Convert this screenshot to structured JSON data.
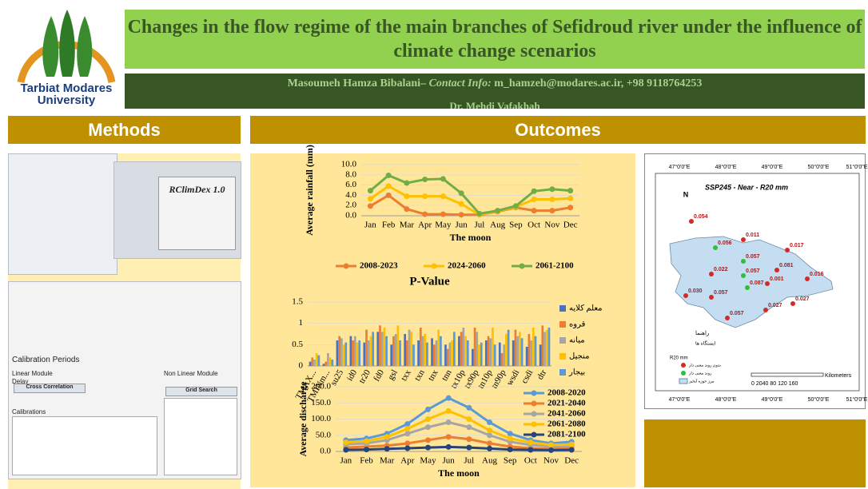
{
  "header": {
    "university": [
      "Tarbiat Modares",
      "University"
    ],
    "title": "Changes in the flow regime of the main branches of Sefidroud river under the influence of climate change scenarios",
    "author": "Masoumeh Hamza Bibalani–",
    "contact_label": "Contact Info:",
    "contact": "m_hamzeh@modares.ac.ir, +98 9118764253",
    "advisor": "Dr. Mehdi Vafakhah"
  },
  "sections": {
    "methods": "Methods",
    "outcomes": "Outcomes"
  },
  "screenshots": {
    "app_title": "RClimDex 1.0",
    "calibration_periods": "Calibration Periods",
    "linear_module": "Linear Module",
    "nonlinear_module": "Non Linear Module",
    "delay": "Delay",
    "cross_correlation": "Cross Correlation",
    "grid_search": "Grid Search",
    "calibrations": "Calibrations"
  },
  "map": {
    "title": "SSP245 - Near - R20 mm",
    "lon_labels": [
      "47°0'0\"E",
      "48°0'0\"E",
      "49°0'0\"E",
      "50°0'0\"E",
      "51°0'0\"E"
    ],
    "stations": [
      {
        "label": "0.054",
        "color": "#d42a2a"
      },
      {
        "label": "0.011",
        "color": "#d42a2a"
      },
      {
        "label": "0.056",
        "color": "#2fbf3a"
      },
      {
        "label": "0.017",
        "color": "#d42a2a"
      },
      {
        "label": "0.022",
        "color": "#d42a2a"
      },
      {
        "label": "0.057",
        "color": "#2fbf3a"
      },
      {
        "label": "0.081",
        "color": "#d42a2a"
      },
      {
        "label": "0.016",
        "color": "#d42a2a"
      },
      {
        "label": "0.057",
        "color": "#2fbf3a"
      },
      {
        "label": "0.001",
        "color": "#d42a2a"
      },
      {
        "label": "0.030",
        "color": "#d42a2a"
      },
      {
        "label": "0.057",
        "color": "#d42a2a"
      },
      {
        "label": "0.087",
        "color": "#2fbf3a"
      },
      {
        "label": "0.027",
        "color": "#d42a2a"
      },
      {
        "label": "0.027",
        "color": "#d42a2a"
      },
      {
        "label": "0.057",
        "color": "#d42a2a"
      }
    ],
    "legend_title": "راهنما",
    "legend_stations": "ایستگاه ها",
    "legend_r20": "R20 mm",
    "legend_no_trend": "بدون روند معنی دار",
    "legend_trend": "روند معنی دار",
    "legend_basin": "مرز حوزه آبخیز",
    "scale_unit": "Kilometers",
    "scale_labels": "0 2040 80 120 160"
  },
  "chart_data": [
    {
      "type": "line",
      "x_label": "The moon",
      "y_label": "Average rainfall (mm)",
      "categories": [
        "Jan",
        "Feb",
        "Mar",
        "Apr",
        "May",
        "Jun",
        "Jul",
        "Aug",
        "Sep",
        "Oct",
        "Nov",
        "Dec"
      ],
      "ylim": [
        0,
        10
      ],
      "yticks": [
        {
          "value": 0,
          "label": "0.0"
        },
        {
          "value": 2,
          "label": "2.0"
        },
        {
          "value": 4,
          "label": "4.0"
        },
        {
          "value": 6,
          "label": "6.0"
        },
        {
          "value": 8,
          "label": "8.0"
        },
        {
          "value": 10,
          "label": "10.0"
        }
      ],
      "grid": true,
      "legend": "bottom",
      "series": [
        {
          "name": "2008-2023",
          "color": "#ed7d31",
          "values": [
            1.9,
            4.0,
            1.3,
            0.3,
            0.3,
            0.2,
            0.2,
            0.8,
            1.6,
            1.0,
            1.0,
            1.6
          ]
        },
        {
          "name": "2024-2060",
          "color": "#ffc000",
          "values": [
            3.3,
            5.8,
            3.8,
            3.8,
            3.8,
            2.3,
            0.2,
            0.9,
            1.7,
            3.2,
            3.2,
            3.4
          ]
        },
        {
          "name": "2061-2100",
          "color": "#70ad47",
          "values": [
            4.9,
            7.9,
            6.4,
            7.1,
            7.2,
            4.4,
            0.4,
            1.0,
            1.9,
            4.8,
            5.2,
            4.9
          ]
        }
      ]
    },
    {
      "type": "bar",
      "title": "P-Value",
      "categories": [
        "TMAX...",
        "TMINm...",
        "su25",
        "id0",
        "tr20",
        "fd0",
        "gsl",
        "txx",
        "txn",
        "tnx",
        "tnn",
        "tx10p",
        "tx90p",
        "tn10p",
        "tn90p",
        "wsdi",
        "csdi",
        "dtr"
      ],
      "ylim": [
        0,
        1.5
      ],
      "yticks": [
        0,
        0.5,
        1,
        1.5
      ],
      "grid": true,
      "legend": "right",
      "series": [
        {
          "name": "معلم کلایه",
          "color": "#4472c4",
          "values": [
            0.1,
            0.05,
            0.6,
            0.7,
            0.55,
            0.8,
            0.5,
            0.75,
            0.6,
            0.65,
            0.5,
            0.7,
            0.4,
            0.6,
            0.55,
            0.6,
            0.45,
            0.5
          ]
        },
        {
          "name": "قروه",
          "color": "#ed7d31",
          "values": [
            0.2,
            0.1,
            0.7,
            0.6,
            0.85,
            0.95,
            0.7,
            0.6,
            0.9,
            0.5,
            0.4,
            0.8,
            0.9,
            0.7,
            0.3,
            0.85,
            0.75,
            0.95
          ]
        },
        {
          "name": "میانه",
          "color": "#a5a5a5",
          "values": [
            0.15,
            0.3,
            0.65,
            0.7,
            0.6,
            0.8,
            0.75,
            0.85,
            0.7,
            0.6,
            0.55,
            0.9,
            0.8,
            0.65,
            0.5,
            0.7,
            0.6,
            0.8
          ]
        },
        {
          "name": "منجیل",
          "color": "#ffc000",
          "values": [
            0.3,
            0.2,
            0.5,
            0.55,
            0.7,
            0.9,
            0.95,
            0.8,
            0.75,
            0.85,
            0.6,
            0.7,
            0.5,
            0.9,
            0.75,
            0.8,
            0.9,
            0.85
          ]
        },
        {
          "name": "بیجار",
          "color": "#5b9bd5",
          "values": [
            0.25,
            0.15,
            0.55,
            0.6,
            0.8,
            0.7,
            0.6,
            0.5,
            0.55,
            0.7,
            0.8,
            0.6,
            0.55,
            0.5,
            0.85,
            0.65,
            0.7,
            0.9
          ]
        }
      ]
    },
    {
      "type": "line",
      "x_label": "The moon",
      "y_label": "Average discharge",
      "categories": [
        "Jan",
        "Feb",
        "Mar",
        "Apr",
        "May",
        "Jun",
        "Jul",
        "Aug",
        "Sep",
        "Oct",
        "Nov",
        "Dec"
      ],
      "ylim": [
        0,
        200
      ],
      "yticks": [
        {
          "value": 0,
          "label": "0.0"
        },
        {
          "value": 50,
          "label": "50.0"
        },
        {
          "value": 100,
          "label": "100.0"
        },
        {
          "value": 150,
          "label": "150.0"
        },
        {
          "value": 200,
          "label": "200.0"
        }
      ],
      "grid": true,
      "legend": "right",
      "series": [
        {
          "name": "2008-2020",
          "color": "#5b9bd5",
          "values": [
            35,
            40,
            55,
            85,
            130,
            165,
            135,
            90,
            55,
            35,
            25,
            30
          ]
        },
        {
          "name": "2021-2040",
          "color": "#ed7d31",
          "values": [
            12,
            15,
            18,
            25,
            35,
            45,
            38,
            25,
            15,
            10,
            8,
            10
          ]
        },
        {
          "name": "2041-2060",
          "color": "#a5a5a5",
          "values": [
            22,
            25,
            35,
            55,
            75,
            90,
            75,
            50,
            30,
            20,
            15,
            18
          ]
        },
        {
          "name": "2061-2080",
          "color": "#ffc000",
          "values": [
            28,
            32,
            45,
            70,
            100,
            125,
            100,
            65,
            40,
            28,
            20,
            22
          ]
        },
        {
          "name": "2081-2100",
          "color": "#264478",
          "values": [
            5,
            6,
            8,
            10,
            12,
            14,
            12,
            9,
            6,
            5,
            4,
            5
          ]
        }
      ]
    }
  ]
}
